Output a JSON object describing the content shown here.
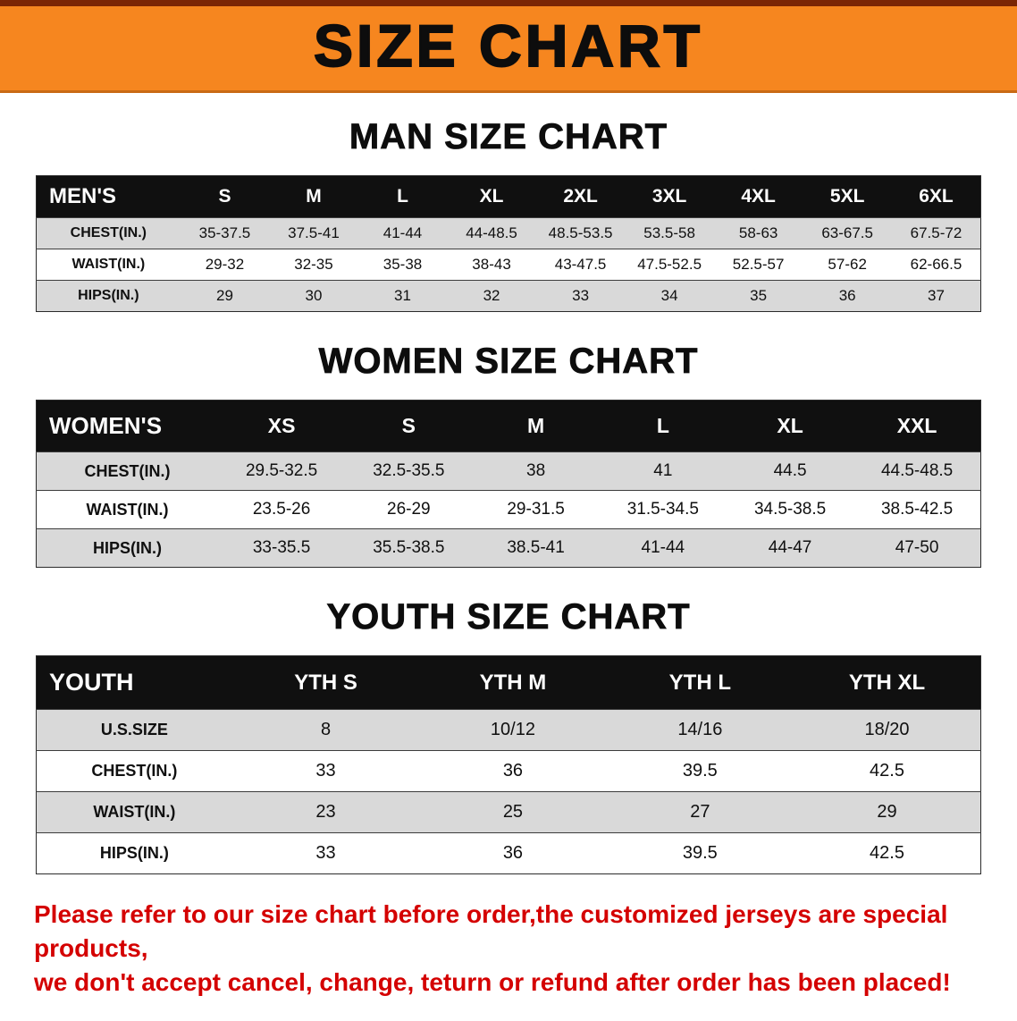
{
  "banner": {
    "title": "SIZE CHART",
    "bg_color": "#F6861F",
    "top_strip_color": "#7B2605"
  },
  "sections": [
    {
      "id": "men",
      "heading": "MAN SIZE CHART",
      "header": [
        "MEN'S",
        "S",
        "M",
        "L",
        "XL",
        "2XL",
        "3XL",
        "4XL",
        "5XL",
        "6XL"
      ],
      "rows": [
        {
          "label": "CHEST(IN.)",
          "values": [
            "35-37.5",
            "37.5-41",
            "41-44",
            "44-48.5",
            "48.5-53.5",
            "53.5-58",
            "58-63",
            "63-67.5",
            "67.5-72"
          ]
        },
        {
          "label": "WAIST(IN.)",
          "values": [
            "29-32",
            "32-35",
            "35-38",
            "38-43",
            "43-47.5",
            "47.5-52.5",
            "52.5-57",
            "57-62",
            "62-66.5"
          ]
        },
        {
          "label": "HIPS(IN.)",
          "values": [
            "29",
            "30",
            "31",
            "32",
            "33",
            "34",
            "35",
            "36",
            "37"
          ]
        }
      ]
    },
    {
      "id": "women",
      "heading": "WOMEN SIZE CHART",
      "header": [
        "WOMEN'S",
        "XS",
        "S",
        "M",
        "L",
        "XL",
        "XXL"
      ],
      "rows": [
        {
          "label": "CHEST(IN.)",
          "values": [
            "29.5-32.5",
            "32.5-35.5",
            "38",
            "41",
            "44.5",
            "44.5-48.5"
          ]
        },
        {
          "label": "WAIST(IN.)",
          "values": [
            "23.5-26",
            "26-29",
            "29-31.5",
            "31.5-34.5",
            "34.5-38.5",
            "38.5-42.5"
          ]
        },
        {
          "label": "HIPS(IN.)",
          "values": [
            "33-35.5",
            "35.5-38.5",
            "38.5-41",
            "41-44",
            "44-47",
            "47-50"
          ]
        }
      ]
    },
    {
      "id": "youth",
      "heading": "YOUTH SIZE CHART",
      "header": [
        "YOUTH",
        "YTH S",
        "YTH M",
        "YTH L",
        "YTH XL"
      ],
      "rows": [
        {
          "label": "U.S.SIZE",
          "values": [
            "8",
            "10/12",
            "14/16",
            "18/20"
          ]
        },
        {
          "label": "CHEST(IN.)",
          "values": [
            "33",
            "36",
            "39.5",
            "42.5"
          ]
        },
        {
          "label": "WAIST(IN.)",
          "values": [
            "23",
            "25",
            "27",
            "29"
          ]
        },
        {
          "label": "HIPS(IN.)",
          "values": [
            "33",
            "36",
            "39.5",
            "42.5"
          ]
        }
      ]
    }
  ],
  "footer": {
    "line1": "Please refer to our size chart before order,the customized jerseys are special products,",
    "line2": "we don't accept cancel, change, teturn or refund after order has been placed!",
    "text_color": "#D40000"
  }
}
